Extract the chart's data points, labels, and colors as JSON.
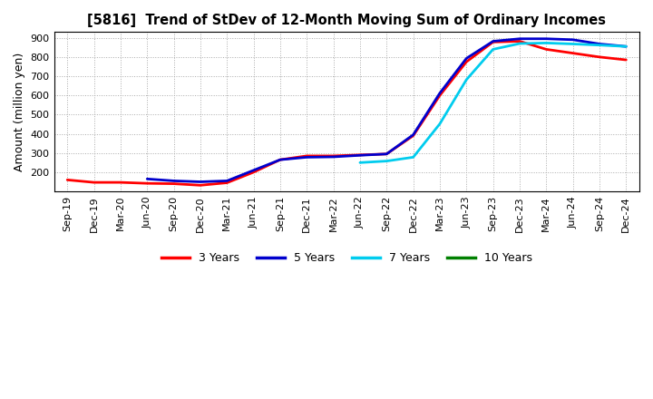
{
  "title": "[5816]  Trend of StDev of 12-Month Moving Sum of Ordinary Incomes",
  "ylabel": "Amount (million yen)",
  "fig_facecolor": "#ffffff",
  "plot_bg_color": "#ffffff",
  "ylim": [
    100,
    930
  ],
  "yticks": [
    200,
    300,
    400,
    500,
    600,
    700,
    800,
    900
  ],
  "x_labels": [
    "Sep-19",
    "Dec-19",
    "Mar-20",
    "Jun-20",
    "Sep-20",
    "Dec-20",
    "Mar-21",
    "Jun-21",
    "Sep-21",
    "Dec-21",
    "Mar-22",
    "Jun-22",
    "Sep-22",
    "Dec-22",
    "Mar-23",
    "Jun-23",
    "Sep-23",
    "Dec-23",
    "Mar-24",
    "Jun-24",
    "Sep-24",
    "Dec-24"
  ],
  "series": {
    "3 Years": {
      "color": "#ff0000",
      "linewidth": 2.0,
      "values": [
        160,
        147,
        147,
        142,
        140,
        132,
        145,
        200,
        265,
        285,
        285,
        290,
        295,
        390,
        600,
        775,
        878,
        882,
        840,
        820,
        800,
        785
      ]
    },
    "5 Years": {
      "color": "#0000cd",
      "linewidth": 2.0,
      "values": [
        null,
        null,
        null,
        165,
        155,
        150,
        155,
        210,
        265,
        278,
        280,
        288,
        295,
        395,
        612,
        793,
        882,
        895,
        895,
        890,
        868,
        855
      ]
    },
    "7 Years": {
      "color": "#00ccee",
      "linewidth": 2.0,
      "values": [
        null,
        null,
        null,
        null,
        null,
        null,
        null,
        null,
        null,
        null,
        null,
        250,
        258,
        278,
        452,
        682,
        840,
        870,
        873,
        868,
        862,
        855
      ]
    },
    "10 Years": {
      "color": "#008000",
      "linewidth": 2.0,
      "values": [
        null,
        null,
        null,
        null,
        null,
        null,
        null,
        null,
        null,
        null,
        null,
        null,
        null,
        null,
        null,
        null,
        null,
        null,
        null,
        null,
        null,
        null
      ]
    }
  },
  "legend_entries": [
    "3 Years",
    "5 Years",
    "7 Years",
    "10 Years"
  ],
  "legend_colors": [
    "#ff0000",
    "#0000cd",
    "#00ccee",
    "#008000"
  ],
  "grid_color": "#aaaaaa",
  "title_fontsize": 10.5,
  "ylabel_fontsize": 9,
  "tick_fontsize": 8
}
